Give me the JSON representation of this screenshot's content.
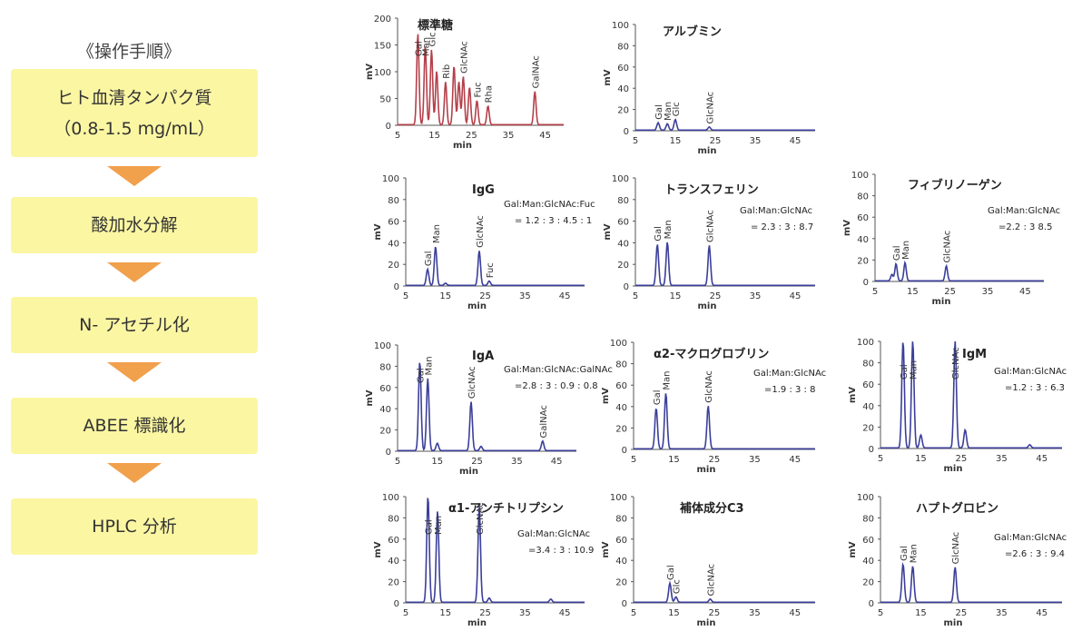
{
  "flow": {
    "title": "《操作手順》",
    "steps": [
      {
        "line1": "ヒト血清タンパク質",
        "line2": "（0.8-1.5 mg/mL）"
      },
      {
        "line1": "酸加水分解",
        "line2": ""
      },
      {
        "line1": "N- アセチル化",
        "line2": ""
      },
      {
        "line1": "ABEE 標識化",
        "line2": ""
      },
      {
        "line1": "HPLC 分析",
        "line2": ""
      }
    ]
  },
  "colors": {
    "standard": "#b5404a",
    "sample": "#3b3f9a",
    "step_fill": "#fbf6a2",
    "arrow": "#f1a04c"
  },
  "chart_data": [
    {
      "type": "line",
      "title": "標準糖",
      "xlabel": "min",
      "ylabel": "mV",
      "xlim": [
        5,
        50
      ],
      "ylim": [
        0,
        200
      ],
      "xticks": [
        5,
        15,
        25,
        35,
        45
      ],
      "yticks": [
        0,
        50,
        100,
        150,
        200
      ],
      "color": "standard",
      "ratio_label": "",
      "ratio_value": "",
      "peaks": [
        [
          10.5,
          170
        ],
        [
          12.5,
          148
        ],
        [
          14.2,
          140
        ],
        [
          15.6,
          100
        ],
        [
          18,
          80
        ],
        [
          20.3,
          110
        ],
        [
          21.6,
          80
        ],
        [
          22.8,
          90
        ],
        [
          24.5,
          70
        ],
        [
          26.5,
          45
        ],
        [
          29.5,
          35
        ],
        [
          42.2,
          62
        ]
      ],
      "peak_labels": [
        {
          "text": "Gal",
          "x": 10.5
        },
        {
          "text": "Man",
          "x": 12.5
        },
        {
          "text": "Glc",
          "x": 14.2
        },
        {
          "text": "Rib",
          "x": 18
        },
        {
          "text": "GlcNAc",
          "x": 22.8
        },
        {
          "text": "Fuc",
          "x": 26.5
        },
        {
          "text": "Rha",
          "x": 29.5
        },
        {
          "text": "GalNAc",
          "x": 42.2
        }
      ]
    },
    {
      "type": "line",
      "title": "アルブミン",
      "xlabel": "min",
      "ylabel": "mV",
      "xlim": [
        5,
        50
      ],
      "ylim": [
        0,
        100
      ],
      "xticks": [
        5,
        15,
        25,
        35,
        45
      ],
      "yticks": [
        0,
        20,
        40,
        60,
        80,
        100
      ],
      "color": "sample",
      "ratio_label": "",
      "ratio_value": "",
      "peaks": [
        [
          10.7,
          7
        ],
        [
          13,
          6
        ],
        [
          15,
          10
        ],
        [
          23.5,
          3
        ]
      ],
      "peak_labels": [
        {
          "text": "Gal",
          "x": 10.7
        },
        {
          "text": "Man",
          "x": 13
        },
        {
          "text": "Glc",
          "x": 15
        },
        {
          "text": "GlcNAc",
          "x": 23.5
        }
      ]
    },
    {
      "type": "line",
      "title": "IgG",
      "xlabel": "min",
      "ylabel": "mV",
      "xlim": [
        5,
        50
      ],
      "ylim": [
        0,
        100
      ],
      "xticks": [
        5,
        15,
        25,
        35,
        45
      ],
      "yticks": [
        0,
        20,
        40,
        60,
        80,
        100
      ],
      "color": "sample",
      "ratio_label": "Gal:Man:GlcNAc:Fuc",
      "ratio_value": "= 1.2 : 3 : 4.5 : 1",
      "peaks": [
        [
          10.5,
          15
        ],
        [
          12.5,
          36
        ],
        [
          15,
          2
        ],
        [
          23.5,
          32
        ],
        [
          26,
          4
        ]
      ],
      "peak_labels": [
        {
          "text": "Gal",
          "x": 10.5
        },
        {
          "text": "Man",
          "x": 12.5
        },
        {
          "text": "GlcNAc",
          "x": 23.5
        },
        {
          "text": "Fuc",
          "x": 26
        }
      ]
    },
    {
      "type": "line",
      "title": "トランスフェリン",
      "xlabel": "min",
      "ylabel": "mV",
      "xlim": [
        5,
        50
      ],
      "ylim": [
        0,
        100
      ],
      "xticks": [
        5,
        15,
        25,
        35,
        45
      ],
      "yticks": [
        0,
        20,
        40,
        60,
        80,
        100
      ],
      "color": "sample",
      "ratio_label": "Gal:Man:GlcNAc",
      "ratio_value": "= 2.3 : 3 : 8.7",
      "peaks": [
        [
          10.5,
          38
        ],
        [
          13,
          40
        ],
        [
          23.5,
          37
        ]
      ],
      "peak_labels": [
        {
          "text": "Gal",
          "x": 10.5
        },
        {
          "text": "Man",
          "x": 13
        },
        {
          "text": "GlcNAc",
          "x": 23.5
        }
      ]
    },
    {
      "type": "line",
      "title": "フィブリノーゲン",
      "xlabel": "min",
      "ylabel": "mV",
      "xlim": [
        5,
        50
      ],
      "ylim": [
        0,
        100
      ],
      "xticks": [
        5,
        15,
        25,
        35,
        45
      ],
      "yticks": [
        0,
        20,
        40,
        60,
        80,
        100
      ],
      "color": "sample",
      "ratio_label": "Gal:Man:GlcNAc",
      "ratio_value": "=2.2 : 3 8.5",
      "peaks": [
        [
          9.5,
          6
        ],
        [
          10.6,
          16
        ],
        [
          13,
          17
        ],
        [
          24,
          14
        ]
      ],
      "peak_labels": [
        {
          "text": "Gal",
          "x": 10.6
        },
        {
          "text": "Man",
          "x": 13
        },
        {
          "text": "GlcNAc",
          "x": 24
        }
      ]
    },
    {
      "type": "line",
      "title": "IgA",
      "xlabel": "min",
      "ylabel": "mV",
      "xlim": [
        5,
        50
      ],
      "ylim": [
        0,
        100
      ],
      "xticks": [
        5,
        15,
        25,
        35,
        45
      ],
      "yticks": [
        0,
        20,
        40,
        60,
        80,
        100
      ],
      "color": "sample",
      "ratio_label": "Gal:Man:GlcNAc:GalNAc",
      "ratio_value": "=2.8 : 3 : 0.9 : 0.8",
      "peaks": [
        [
          10.6,
          84
        ],
        [
          12.6,
          68
        ],
        [
          15,
          7
        ],
        [
          23.5,
          46
        ],
        [
          26,
          4
        ],
        [
          41.5,
          9
        ]
      ],
      "peak_labels": [
        {
          "text": "Gal",
          "x": 10.6
        },
        {
          "text": "Man",
          "x": 12.6
        },
        {
          "text": "GlcNAc",
          "x": 23.5
        },
        {
          "text": "GalNAc",
          "x": 41.5
        }
      ]
    },
    {
      "type": "line",
      "title": "α2-マクログロブリン",
      "xlabel": "min",
      "ylabel": "mV",
      "xlim": [
        5,
        50
      ],
      "ylim": [
        0,
        100
      ],
      "xticks": [
        5,
        15,
        25,
        35,
        45
      ],
      "yticks": [
        0,
        20,
        40,
        60,
        80,
        100
      ],
      "color": "sample",
      "ratio_label": "Gal:Man:GlcNAc",
      "ratio_value": "=1.9 : 3 : 8",
      "peaks": [
        [
          10.6,
          38
        ],
        [
          13,
          52
        ],
        [
          23.5,
          40
        ]
      ],
      "peak_labels": [
        {
          "text": "Gal",
          "x": 10.6
        },
        {
          "text": "Man",
          "x": 13
        },
        {
          "text": "GlcNAc",
          "x": 23.5
        }
      ]
    },
    {
      "type": "line",
      "title": "IgM",
      "xlabel": "min",
      "ylabel": "mV",
      "xlim": [
        5,
        50
      ],
      "ylim": [
        0,
        100
      ],
      "xticks": [
        5,
        15,
        25,
        35,
        45
      ],
      "yticks": [
        0,
        20,
        40,
        60,
        80,
        100
      ],
      "color": "sample",
      "ratio_label": "Gal:Man:GlcNAc",
      "ratio_value": "=1.2 : 3 : 6.3",
      "peaks": [
        [
          10.6,
          100
        ],
        [
          13,
          100
        ],
        [
          15,
          12
        ],
        [
          23.5,
          100
        ],
        [
          26,
          17
        ],
        [
          42,
          3
        ]
      ],
      "peak_labels": [
        {
          "text": "Gal",
          "x": 10.6
        },
        {
          "text": "Man",
          "x": 13
        },
        {
          "text": "GlcNAc",
          "x": 23.5
        }
      ]
    },
    {
      "type": "line",
      "title": "α1-アンチトリプシン",
      "xlabel": "min",
      "ylabel": "mV",
      "xlim": [
        5,
        50
      ],
      "ylim": [
        0,
        100
      ],
      "xticks": [
        5,
        15,
        25,
        35,
        45
      ],
      "yticks": [
        0,
        20,
        40,
        60,
        80,
        100
      ],
      "color": "sample",
      "ratio_label": "Gal:Man:GlcNAc",
      "ratio_value": "=3.4 : 3 : 10.9",
      "peaks": [
        [
          10.6,
          100
        ],
        [
          13,
          86
        ],
        [
          23.5,
          90
        ],
        [
          26,
          4
        ],
        [
          41.5,
          3
        ]
      ],
      "peak_labels": [
        {
          "text": "Gal",
          "x": 10.6
        },
        {
          "text": "Man",
          "x": 13
        },
        {
          "text": "GlcNAc",
          "x": 23.5
        }
      ]
    },
    {
      "type": "line",
      "title": "補体成分C3",
      "xlabel": "min",
      "ylabel": "mV",
      "xlim": [
        5,
        50
      ],
      "ylim": [
        0,
        100
      ],
      "xticks": [
        5,
        15,
        25,
        35,
        45
      ],
      "yticks": [
        0,
        20,
        40,
        60,
        80,
        100
      ],
      "color": "sample",
      "ratio_label": "",
      "ratio_value": "",
      "peaks": [
        [
          14,
          18
        ],
        [
          15.5,
          5
        ],
        [
          24,
          3
        ]
      ],
      "peak_labels": [
        {
          "text": "Gal",
          "x": 14
        },
        {
          "text": "Glc",
          "x": 15.5
        },
        {
          "text": "GlcNAc",
          "x": 24
        }
      ]
    },
    {
      "type": "line",
      "title": "ハプトグロビン",
      "xlabel": "min",
      "ylabel": "mV",
      "xlim": [
        5,
        50
      ],
      "ylim": [
        0,
        100
      ],
      "xticks": [
        5,
        15,
        25,
        35,
        45
      ],
      "yticks": [
        0,
        20,
        40,
        60,
        80,
        100
      ],
      "color": "sample",
      "ratio_label": "Gal:Man:GlcNAc",
      "ratio_value": "=2.6 : 3 : 9.4",
      "peaks": [
        [
          10.6,
          36
        ],
        [
          13,
          34
        ],
        [
          23.5,
          33
        ]
      ],
      "peak_labels": [
        {
          "text": "Gal",
          "x": 10.6
        },
        {
          "text": "Man",
          "x": 13
        },
        {
          "text": "GlcNAc",
          "x": 23.5
        }
      ]
    }
  ]
}
